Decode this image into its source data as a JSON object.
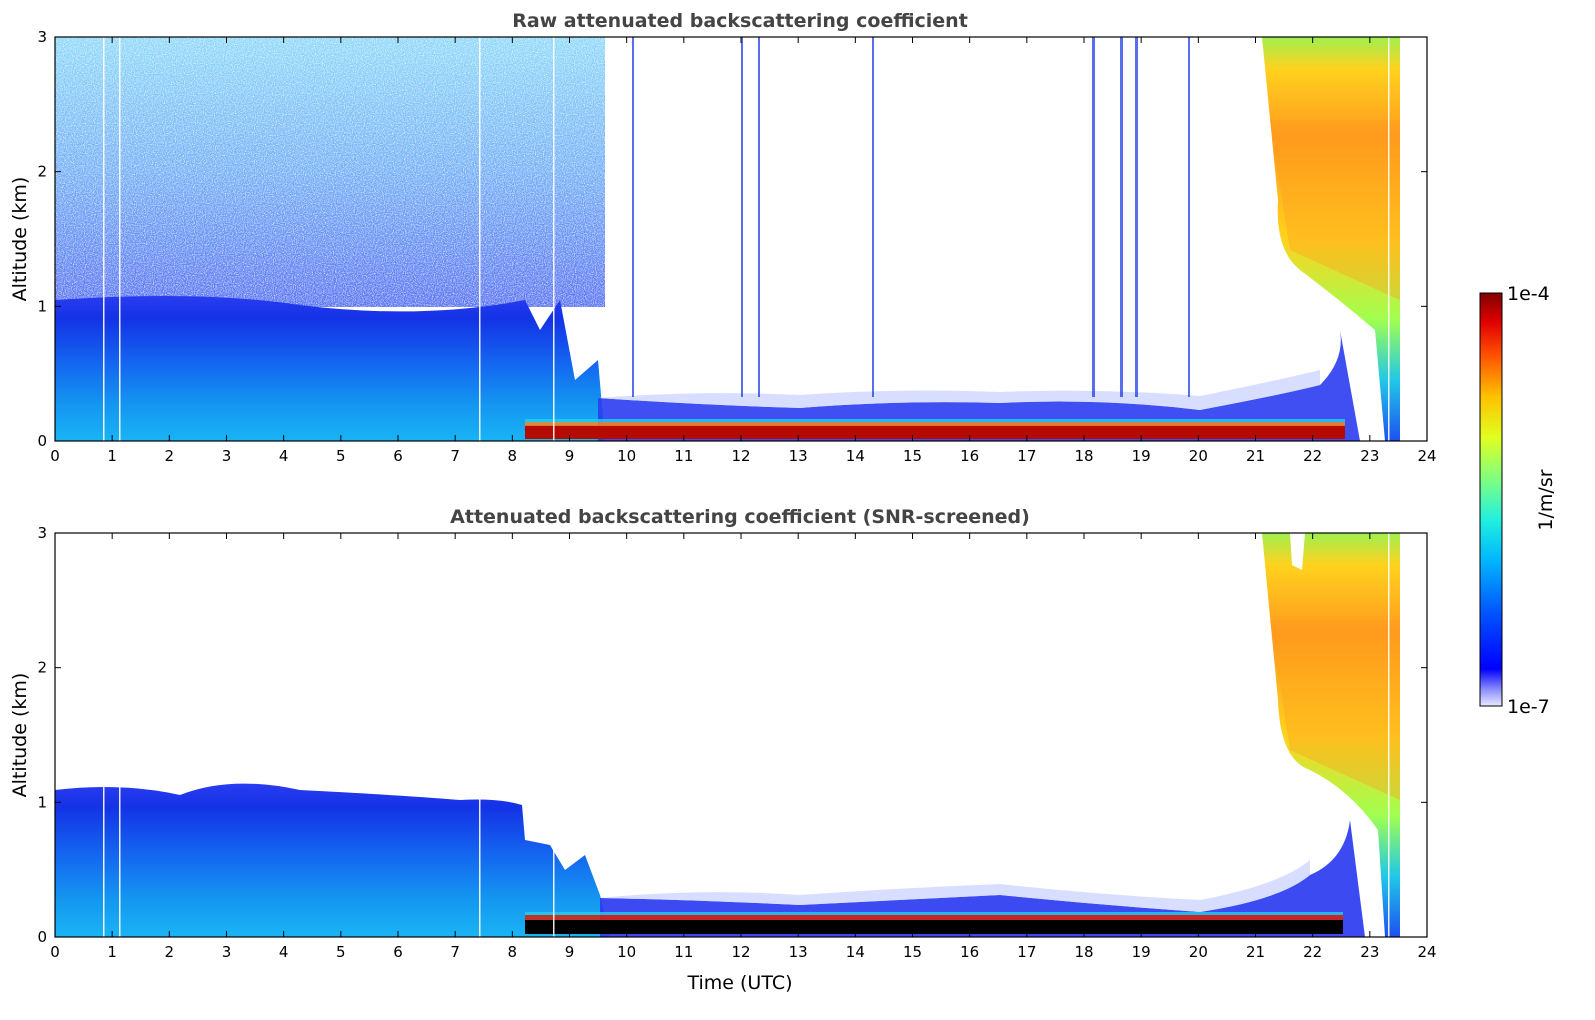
{
  "chart_data": [
    {
      "type": "heatmap",
      "title": "Raw attenuated backscattering coefficient",
      "xlabel": "",
      "ylabel": "Altitude (km)",
      "xlim": [
        0,
        24
      ],
      "ylim": [
        0,
        3
      ],
      "xticks": [
        "0",
        "1",
        "2",
        "3",
        "4",
        "5",
        "6",
        "7",
        "8",
        "9",
        "10",
        "11",
        "12",
        "13",
        "14",
        "15",
        "16",
        "17",
        "18",
        "19",
        "20",
        "21",
        "22",
        "23",
        "24"
      ],
      "yticks": [
        "0",
        "1",
        "2",
        "3"
      ],
      "features": [
        {
          "name": "boundary-layer aerosol",
          "x": [
            0,
            8.3
          ],
          "y": [
            0,
            1.1
          ],
          "level": "medium-low"
        },
        {
          "name": "noise above boundary layer",
          "x": [
            0,
            9.6
          ],
          "y": [
            1.1,
            3.0
          ],
          "level": "low-speckle"
        },
        {
          "name": "fog/low cloud layer",
          "x": [
            8.3,
            22.6
          ],
          "y": [
            0.02,
            0.12
          ],
          "level": "high"
        },
        {
          "name": "shallow mixed layer",
          "x": [
            9.6,
            21.5
          ],
          "y": [
            0.12,
            0.25
          ],
          "level": "low"
        },
        {
          "name": "rain / precipitation",
          "x": [
            21.3,
            23.6
          ],
          "y": [
            0.1,
            3.0
          ],
          "level": "medium-high"
        }
      ]
    },
    {
      "type": "heatmap",
      "title": "Attenuated backscattering coefficient (SNR-screened)",
      "xlabel": "Time (UTC)",
      "ylabel": "Altitude (km)",
      "xlim": [
        0,
        24
      ],
      "ylim": [
        0,
        3
      ],
      "xticks": [
        "0",
        "1",
        "2",
        "3",
        "4",
        "5",
        "6",
        "7",
        "8",
        "9",
        "10",
        "11",
        "12",
        "13",
        "14",
        "15",
        "16",
        "17",
        "18",
        "19",
        "20",
        "21",
        "22",
        "23",
        "24"
      ],
      "yticks": [
        "0",
        "1",
        "2",
        "3"
      ],
      "features": [
        {
          "name": "boundary-layer aerosol",
          "x": [
            0,
            8.3
          ],
          "y": [
            0,
            1.1
          ],
          "level": "medium-low"
        },
        {
          "name": "fog/low cloud layer (saturated)",
          "x": [
            8.3,
            22.6
          ],
          "y": [
            0.02,
            0.12
          ],
          "level": "saturated"
        },
        {
          "name": "shallow mixed layer",
          "x": [
            9.6,
            21.5
          ],
          "y": [
            0.12,
            0.25
          ],
          "level": "low"
        },
        {
          "name": "rain / precipitation",
          "x": [
            21.3,
            23.6
          ],
          "y": [
            0.1,
            3.0
          ],
          "level": "medium-high"
        }
      ]
    }
  ],
  "colorbar": {
    "label": "1/m/sr",
    "max_label": "1e-4",
    "min_label": "1e-7",
    "range": [
      1e-07,
      0.0001
    ],
    "scale": "log",
    "colormap": "jet"
  }
}
